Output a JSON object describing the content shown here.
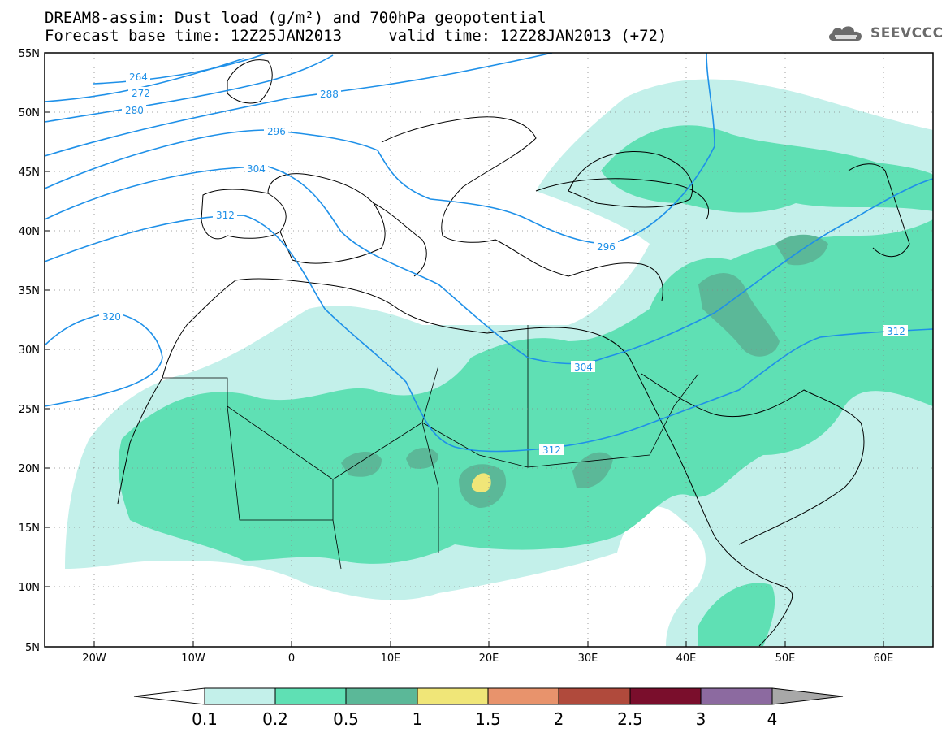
{
  "title": {
    "line1": "DREAM8-assim: Dust load (g/m²) and 700hPa geopotential",
    "line2": "Forecast base time: 12Z25JAN2013     valid time: 12Z28JAN2013 (+72)"
  },
  "logo": {
    "text": "SEEVCCC",
    "icon": "cloud-icon"
  },
  "map": {
    "lat_labels": [
      "55N",
      "50N",
      "45N",
      "40N",
      "35N",
      "30N",
      "25N",
      "20N",
      "15N",
      "10N",
      "5N"
    ],
    "lon_labels": [
      "20W",
      "10W",
      "0",
      "10E",
      "20E",
      "30E",
      "40E",
      "50E",
      "60E"
    ],
    "contours": [
      {
        "label": "264",
        "value": 264
      },
      {
        "label": "272",
        "value": 272
      },
      {
        "label": "280",
        "value": 280
      },
      {
        "label": "288",
        "value": 288
      },
      {
        "label": "296",
        "value": 296
      },
      {
        "label": "304",
        "value": 304
      },
      {
        "label": "312",
        "value": 312
      },
      {
        "label": "320",
        "value": 320
      }
    ],
    "contour_color": "#1e90e8",
    "grid": "dotted"
  },
  "legend": {
    "ticks": [
      "0.1",
      "0.2",
      "0.5",
      "1",
      "1.5",
      "2",
      "2.5",
      "3",
      "4"
    ],
    "colors": [
      "#ffffff",
      "#c3f0ea",
      "#5fe0b4",
      "#5bb898",
      "#f0e678",
      "#e8936c",
      "#b04a3c",
      "#7a0e2c",
      "#8c6aa0",
      "#a8a8a8"
    ]
  }
}
